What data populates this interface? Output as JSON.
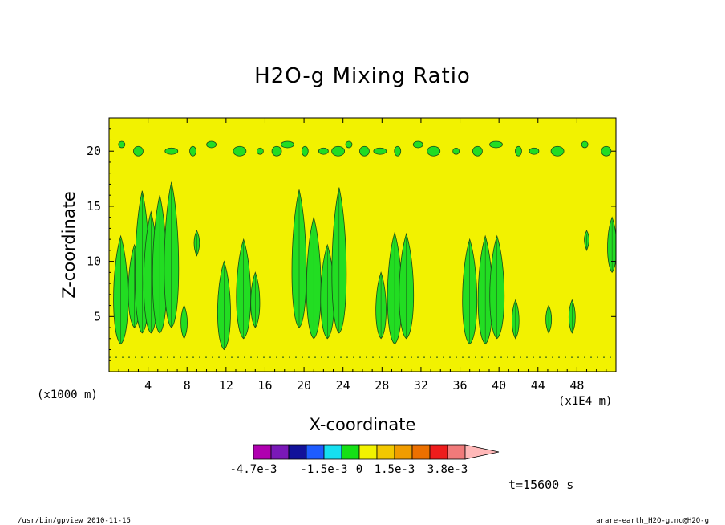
{
  "chart_data": {
    "type": "heatmap",
    "title": "H2O-g Mixing Ratio",
    "xlabel": "X-coordinate",
    "ylabel": "Z-coordinate",
    "x_units_note": "(x1E4 m)",
    "y_units_note": "(x1000 m)",
    "xlim": [
      0,
      52
    ],
    "ylim": [
      0,
      23
    ],
    "x_ticks": [
      4,
      8,
      12,
      16,
      20,
      24,
      28,
      32,
      36,
      40,
      44,
      48
    ],
    "x_tick_labels": [
      "4",
      "8",
      "12",
      "16",
      "20",
      "24",
      "28",
      "32",
      "36",
      "40",
      "44",
      "48"
    ],
    "y_ticks": [
      5,
      10,
      15,
      20
    ],
    "y_tick_labels": [
      "5",
      "10",
      "15",
      "20"
    ],
    "background_level_color": "#f2f200",
    "contour_level_color": "#22dd22",
    "contour_line_color": "#1a4a1a",
    "columns": [
      {
        "x": 1.2,
        "zmin": 2.5,
        "zmax": 12.3
      },
      {
        "x": 2.6,
        "zmin": 4.0,
        "zmax": 11.5
      },
      {
        "x": 3.4,
        "zmin": 3.5,
        "zmax": 16.4
      },
      {
        "x": 4.3,
        "zmin": 3.5,
        "zmax": 14.5
      },
      {
        "x": 5.2,
        "zmin": 3.5,
        "zmax": 16.0
      },
      {
        "x": 6.4,
        "zmin": 4.0,
        "zmax": 17.2
      },
      {
        "x": 7.7,
        "zmin": 3.0,
        "zmax": 6.0
      },
      {
        "x": 9.0,
        "zmin": 10.5,
        "zmax": 12.8
      },
      {
        "x": 11.8,
        "zmin": 2.0,
        "zmax": 10.0
      },
      {
        "x": 13.8,
        "zmin": 3.0,
        "zmax": 12.0
      },
      {
        "x": 15.0,
        "zmin": 4.0,
        "zmax": 9.0
      },
      {
        "x": 19.5,
        "zmin": 4.0,
        "zmax": 16.5
      },
      {
        "x": 21.0,
        "zmin": 3.0,
        "zmax": 14.0
      },
      {
        "x": 22.4,
        "zmin": 3.0,
        "zmax": 11.5
      },
      {
        "x": 23.6,
        "zmin": 3.5,
        "zmax": 16.7
      },
      {
        "x": 27.9,
        "zmin": 3.0,
        "zmax": 9.0
      },
      {
        "x": 29.3,
        "zmin": 2.5,
        "zmax": 12.6
      },
      {
        "x": 30.5,
        "zmin": 3.0,
        "zmax": 12.5
      },
      {
        "x": 37.0,
        "zmin": 2.5,
        "zmax": 12.0
      },
      {
        "x": 38.6,
        "zmin": 2.5,
        "zmax": 12.3
      },
      {
        "x": 39.8,
        "zmin": 3.0,
        "zmax": 12.3
      },
      {
        "x": 41.7,
        "zmin": 3.0,
        "zmax": 6.5
      },
      {
        "x": 45.1,
        "zmin": 3.5,
        "zmax": 6.0
      },
      {
        "x": 47.5,
        "zmin": 3.5,
        "zmax": 6.5
      },
      {
        "x": 49.0,
        "zmin": 11.0,
        "zmax": 12.8
      },
      {
        "x": 51.6,
        "zmin": 9.0,
        "zmax": 14.0
      }
    ],
    "colorbar": {
      "colors": [
        "#b000b0",
        "#7a18b8",
        "#12129a",
        "#1e5cff",
        "#16e0f0",
        "#16e016",
        "#f2f200",
        "#f2c800",
        "#f09c00",
        "#ec7000",
        "#ee1c1c",
        "#f07a7a",
        "#ffb8b8"
      ],
      "labels": [
        {
          "text": "-4.7e-3",
          "at_bin": 0
        },
        {
          "text": "-1.5e-3",
          "at_bin": 4
        },
        {
          "text": "0",
          "at_bin": 6
        },
        {
          "text": "1.5e-3",
          "at_bin": 8
        },
        {
          "text": "3.8e-3",
          "at_bin": 11
        }
      ]
    }
  },
  "time_label": "t=15600 s",
  "footer": {
    "left": "/usr/bin/gpview  2010-11-15",
    "right": "arare-earth_H2O-g.nc@H2O-g"
  }
}
